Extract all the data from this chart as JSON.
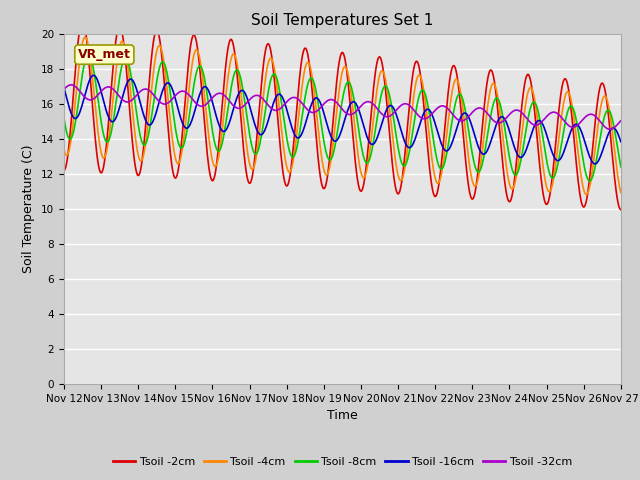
{
  "title": "Soil Temperatures Set 1",
  "xlabel": "Time",
  "ylabel": "Soil Temperature (C)",
  "ylim": [
    0,
    20
  ],
  "n_days": 15,
  "background_color": "#e5e5e5",
  "fig_facecolor": "#d0d0d0",
  "annotation_text": "VR_met",
  "annotation_bg": "#ffffcc",
  "annotation_border": "#999900",
  "series_colors": {
    "Tsoil -2cm": "#dd0000",
    "Tsoil -4cm": "#ff8800",
    "Tsoil -8cm": "#00cc00",
    "Tsoil -16cm": "#0000cc",
    "Tsoil -32cm": "#aa00cc"
  },
  "xtick_labels": [
    "Nov 12",
    "Nov 13",
    "Nov 14",
    "Nov 15",
    "Nov 16",
    "Nov 17",
    "Nov 18",
    "Nov 19",
    "Nov 20",
    "Nov 21",
    "Nov 22",
    "Nov 23",
    "Nov 24",
    "Nov 25",
    "Nov 26",
    "Nov 27"
  ],
  "ytick_labels": [
    0,
    2,
    4,
    6,
    8,
    10,
    12,
    14,
    16,
    18,
    20
  ],
  "linewidth": 1.2,
  "tick_fontsize": 7.5,
  "label_fontsize": 9,
  "title_fontsize": 11,
  "legend_fontsize": 8
}
